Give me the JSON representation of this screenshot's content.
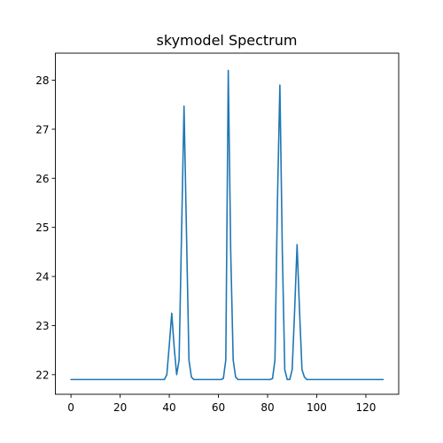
{
  "chart_data": {
    "type": "line",
    "title": "skymodel Spectrum",
    "xlabel": "",
    "ylabel": "",
    "xlim": [
      -6.35,
      133.35
    ],
    "ylim": [
      21.6,
      28.55
    ],
    "xticks": [
      0,
      20,
      40,
      60,
      80,
      100,
      120
    ],
    "yticks": [
      22,
      23,
      24,
      25,
      26,
      27,
      28
    ],
    "grid": false,
    "legend": "none",
    "series": [
      {
        "color": "#1f77b4",
        "x": [
          0,
          38,
          39,
          40,
          41,
          42,
          43,
          44,
          45,
          46,
          47,
          48,
          49,
          50,
          61,
          62,
          63,
          64,
          65,
          66,
          67,
          68,
          81,
          82,
          83,
          84,
          85,
          86,
          87,
          88,
          89,
          90,
          91,
          92,
          93,
          94,
          95,
          96,
          127
        ],
        "y": [
          21.9,
          21.9,
          22.0,
          22.6,
          23.25,
          22.55,
          22.0,
          22.3,
          24.9,
          27.47,
          24.9,
          22.3,
          21.95,
          21.9,
          21.9,
          21.92,
          22.3,
          28.2,
          24.5,
          22.3,
          21.95,
          21.9,
          21.9,
          21.92,
          22.3,
          25.5,
          27.9,
          24.5,
          22.1,
          21.9,
          21.9,
          22.1,
          23.3,
          24.65,
          23.3,
          22.1,
          21.95,
          21.9,
          21.9
        ]
      }
    ]
  }
}
